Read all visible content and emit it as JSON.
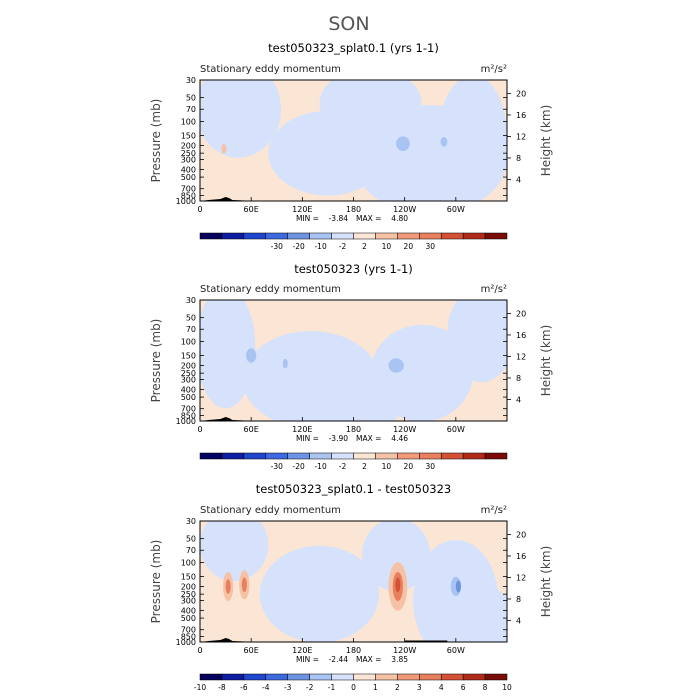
{
  "page": {
    "main_title": "SON"
  },
  "colors": {
    "neg_light": "#d6e2fb",
    "neg_mid": "#a9c3f3",
    "neg_dark": "#6f93e3",
    "pos_light": "#fbe6d6",
    "pos_mid": "#f5c2a6",
    "pos_dark": "#e8805f",
    "pos_darker": "#d35134",
    "topo": "#000000"
  },
  "chart_data": [
    {
      "type": "heatmap",
      "title": "test050323_splat0.1 (yrs 1-1)",
      "subtitle_left": "Stationary eddy momentum",
      "units": "m²/s²",
      "ylabel": "Pressure (mb)",
      "ylabel_right": "Height (km)",
      "x_ticks": [
        "0",
        "60E",
        "120E",
        "180",
        "120W",
        "60W"
      ],
      "xlim": [
        0,
        360
      ],
      "y_ticks": [
        "30",
        "50",
        "70",
        "100",
        "150",
        "200",
        "250",
        "300",
        "400",
        "500",
        "700",
        "850",
        "1000"
      ],
      "ylim": [
        1000,
        30
      ],
      "y_right_ticks": [
        "4",
        "8",
        "12",
        "16",
        "20"
      ],
      "min_label": "MIN =",
      "min_value": "-3.84",
      "max_label": "MAX =",
      "max_value": "4.80",
      "colorbar_labels": [
        "-30",
        "-20",
        "-10",
        "-2",
        "2",
        "10",
        "20",
        "30"
      ],
      "colorbar_colors": [
        "#06025e",
        "#0d1ca0",
        "#1f46cc",
        "#3c6ade",
        "#6f93e3",
        "#a9c3f3",
        "#d6e2fb",
        "#fbe6d6",
        "#f5c2a6",
        "#f09a7a",
        "#e8805f",
        "#d35134",
        "#b02a1a",
        "#7a0c08"
      ],
      "features": [
        {
          "kind": "neg_light",
          "lon": 150,
          "p": 250,
          "dlon": 70,
          "dp": 0.35
        },
        {
          "kind": "neg_light",
          "lon": 270,
          "p": 300,
          "dlon": 90,
          "dp": 0.45
        },
        {
          "kind": "neg_light",
          "lon": 45,
          "p": 70,
          "dlon": 50,
          "dp": 0.4
        },
        {
          "kind": "neg_light",
          "lon": 200,
          "p": 60,
          "dlon": 60,
          "dp": 0.3
        },
        {
          "kind": "neg_light",
          "lon": 320,
          "p": 150,
          "dlon": 40,
          "dp": 0.5
        },
        {
          "kind": "neg_mid",
          "lon": 238,
          "p": 190,
          "dlon": 8,
          "dp": 0.06
        },
        {
          "kind": "neg_mid",
          "lon": 286,
          "p": 180,
          "dlon": 4,
          "dp": 0.04
        },
        {
          "kind": "pos_mid",
          "lon": 28,
          "p": 220,
          "dlon": 3,
          "dp": 0.04
        }
      ]
    },
    {
      "type": "heatmap",
      "title": "test050323 (yrs 1-1)",
      "subtitle_left": "Stationary eddy momentum",
      "units": "m²/s²",
      "ylabel": "Pressure (mb)",
      "ylabel_right": "Height (km)",
      "x_ticks": [
        "0",
        "60E",
        "120E",
        "180",
        "120W",
        "60W"
      ],
      "xlim": [
        0,
        360
      ],
      "y_ticks": [
        "30",
        "50",
        "70",
        "100",
        "150",
        "200",
        "250",
        "300",
        "400",
        "500",
        "700",
        "850",
        "1000"
      ],
      "ylim": [
        1000,
        30
      ],
      "y_right_ticks": [
        "4",
        "8",
        "12",
        "16",
        "20"
      ],
      "min_label": "MIN =",
      "min_value": "-3.90",
      "max_label": "MAX =",
      "max_value": "4.46",
      "colorbar_labels": [
        "-30",
        "-20",
        "-10",
        "-2",
        "2",
        "10",
        "20",
        "30"
      ],
      "colorbar_colors": [
        "#06025e",
        "#0d1ca0",
        "#1f46cc",
        "#3c6ade",
        "#6f93e3",
        "#a9c3f3",
        "#d6e2fb",
        "#fbe6d6",
        "#f5c2a6",
        "#f09a7a",
        "#e8805f",
        "#d35134",
        "#b02a1a",
        "#7a0c08"
      ],
      "features": [
        {
          "kind": "neg_light",
          "lon": 130,
          "p": 300,
          "dlon": 80,
          "dp": 0.4
        },
        {
          "kind": "neg_light",
          "lon": 260,
          "p": 250,
          "dlon": 60,
          "dp": 0.4
        },
        {
          "kind": "neg_light",
          "lon": 30,
          "p": 120,
          "dlon": 35,
          "dp": 0.5
        },
        {
          "kind": "neg_light",
          "lon": 330,
          "p": 80,
          "dlon": 40,
          "dp": 0.4
        },
        {
          "kind": "neg_light",
          "lon": 190,
          "p": 500,
          "dlon": 50,
          "dp": 0.3
        },
        {
          "kind": "neg_mid",
          "lon": 60,
          "p": 150,
          "dlon": 6,
          "dp": 0.06
        },
        {
          "kind": "neg_mid",
          "lon": 230,
          "p": 200,
          "dlon": 9,
          "dp": 0.06
        },
        {
          "kind": "neg_mid",
          "lon": 100,
          "p": 190,
          "dlon": 3,
          "dp": 0.04
        }
      ]
    },
    {
      "type": "heatmap",
      "title": "test050323_splat0.1 - test050323",
      "subtitle_left": "Stationary eddy momentum",
      "units": "m²/s²",
      "ylabel": "Pressure (mb)",
      "ylabel_right": "Height (km)",
      "x_ticks": [
        "0",
        "60E",
        "120E",
        "180",
        "120W",
        "60W"
      ],
      "xlim": [
        0,
        360
      ],
      "y_ticks": [
        "30",
        "50",
        "70",
        "100",
        "150",
        "200",
        "250",
        "300",
        "400",
        "500",
        "700",
        "850",
        "1000"
      ],
      "ylim": [
        1000,
        30
      ],
      "y_right_ticks": [
        "4",
        "8",
        "12",
        "16",
        "20"
      ],
      "min_label": "MIN =",
      "min_value": "-2.44",
      "max_label": "MAX =",
      "max_value": "3.85",
      "colorbar_labels": [
        "-10",
        "-8",
        "-6",
        "-4",
        "-3",
        "-2",
        "-1",
        "0",
        "1",
        "2",
        "3",
        "4",
        "6",
        "8",
        "10"
      ],
      "colorbar_colors": [
        "#06025e",
        "#0d1ca0",
        "#1f46cc",
        "#3c6ade",
        "#6f93e3",
        "#a9c3f3",
        "#d6e2fb",
        "#fbe6d6",
        "#f5c2a6",
        "#f09a7a",
        "#e8805f",
        "#d35134",
        "#b02a1a",
        "#7a0c08"
      ],
      "features": [
        {
          "kind": "neg_light",
          "lon": 140,
          "p": 250,
          "dlon": 70,
          "dp": 0.4
        },
        {
          "kind": "neg_light",
          "lon": 300,
          "p": 300,
          "dlon": 50,
          "dp": 0.5
        },
        {
          "kind": "neg_light",
          "lon": 40,
          "p": 60,
          "dlon": 40,
          "dp": 0.3
        },
        {
          "kind": "neg_light",
          "lon": 230,
          "p": 80,
          "dlon": 40,
          "dp": 0.3
        },
        {
          "kind": "neg_light",
          "lon": 340,
          "p": 600,
          "dlon": 30,
          "dp": 0.3
        },
        {
          "kind": "pos_mid",
          "lon": 33,
          "p": 200,
          "dlon": 6,
          "dp": 0.12
        },
        {
          "kind": "pos_dark",
          "lon": 33,
          "p": 200,
          "dlon": 3,
          "dp": 0.06
        },
        {
          "kind": "pos_mid",
          "lon": 52,
          "p": 190,
          "dlon": 6,
          "dp": 0.12
        },
        {
          "kind": "pos_dark",
          "lon": 52,
          "p": 190,
          "dlon": 3,
          "dp": 0.06
        },
        {
          "kind": "pos_mid",
          "lon": 232,
          "p": 200,
          "dlon": 11,
          "dp": 0.2
        },
        {
          "kind": "pos_dark",
          "lon": 232,
          "p": 200,
          "dlon": 6,
          "dp": 0.12
        },
        {
          "kind": "pos_darker",
          "lon": 232,
          "p": 190,
          "dlon": 3,
          "dp": 0.06
        },
        {
          "kind": "neg_mid",
          "lon": 300,
          "p": 200,
          "dlon": 6,
          "dp": 0.08
        },
        {
          "kind": "neg_dark",
          "lon": 303,
          "p": 200,
          "dlon": 3,
          "dp": 0.05
        }
      ]
    }
  ]
}
